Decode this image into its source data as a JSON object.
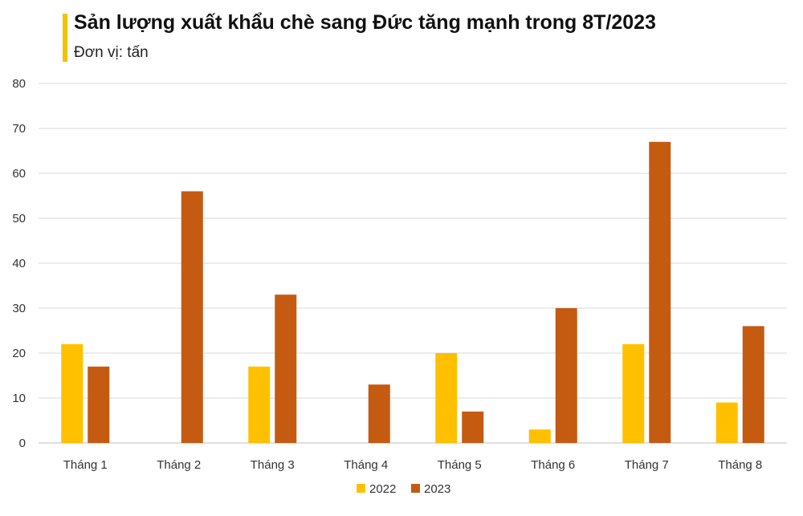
{
  "header": {
    "title": "Sản lượng xuất khẩu chè sang Đức tăng mạnh trong 8T/2023",
    "subtitle": "Đơn vị: tấn"
  },
  "chart_data": {
    "type": "bar",
    "title": "Sản lượng xuất khẩu chè sang Đức tăng mạnh trong 8T/2023",
    "subtitle": "Đơn vị: tấn",
    "categories": [
      "Tháng 1",
      "Tháng 2",
      "Tháng 3",
      "Tháng 4",
      "Tháng 5",
      "Tháng 6",
      "Tháng 7",
      "Tháng 8"
    ],
    "series": [
      {
        "name": "2022",
        "color": "#ffc000",
        "values": [
          22,
          0,
          17,
          0,
          20,
          3,
          22,
          9
        ]
      },
      {
        "name": "2023",
        "color": "#c55a11",
        "values": [
          17,
          56,
          33,
          13,
          7,
          30,
          67,
          26
        ]
      }
    ],
    "ylim": [
      0,
      80
    ],
    "yticks": [
      0,
      10,
      20,
      30,
      40,
      50,
      60,
      70,
      80
    ],
    "grid": true,
    "legend_position": "bottom"
  }
}
